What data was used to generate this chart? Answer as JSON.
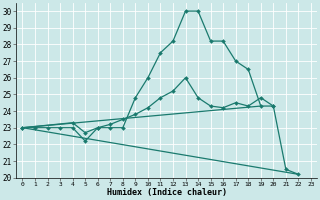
{
  "xlabel": "Humidex (Indice chaleur)",
  "background_color": "#cce8e8",
  "grid_color": "#ffffff",
  "line_color": "#1a7a6e",
  "xlim": [
    -0.5,
    23.5
  ],
  "ylim": [
    20,
    30.5
  ],
  "xticks": [
    0,
    1,
    2,
    3,
    4,
    5,
    6,
    7,
    8,
    9,
    10,
    11,
    12,
    13,
    14,
    15,
    16,
    17,
    18,
    19,
    20,
    21,
    22,
    23
  ],
  "yticks": [
    20,
    21,
    22,
    23,
    24,
    25,
    26,
    27,
    28,
    29,
    30
  ],
  "line1_x": [
    0,
    1,
    2,
    3,
    4,
    5,
    6,
    7,
    8,
    9,
    10,
    11,
    12,
    13,
    14,
    15,
    16,
    17,
    18,
    19,
    20,
    21,
    22
  ],
  "line1_y": [
    23,
    23,
    23,
    23,
    23,
    22.2,
    23,
    23,
    23,
    24.8,
    26,
    27.5,
    28.2,
    30,
    30,
    28.2,
    28.2,
    27,
    26.5,
    24.3,
    24.3,
    20.5,
    20.2
  ],
  "line2_x": [
    0,
    4,
    5,
    6,
    7,
    8,
    9,
    10,
    11,
    12,
    13,
    14,
    15,
    16,
    17,
    18,
    19,
    20
  ],
  "line2_y": [
    23,
    23.3,
    22.7,
    23,
    23.2,
    23.5,
    23.8,
    24.2,
    24.8,
    25.2,
    26,
    24.8,
    24.3,
    24.2,
    24.5,
    24.3,
    24.8,
    24.3
  ],
  "line3_x": [
    0,
    19
  ],
  "line3_y": [
    23,
    24.3
  ],
  "line4_x": [
    0,
    22
  ],
  "line4_y": [
    23,
    20.2
  ]
}
